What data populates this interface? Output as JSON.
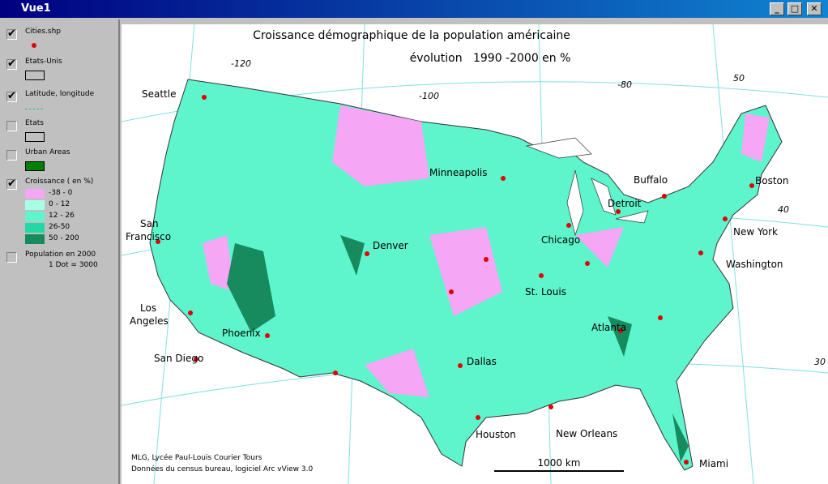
{
  "window": {
    "title": "Vue1"
  },
  "legend": {
    "layers": [
      {
        "name": "Cities.shp",
        "checked": true
      },
      {
        "name": "Etats-Unis",
        "checked": true
      },
      {
        "name": "Latitude, longitude",
        "checked": true
      },
      {
        "name": "Etats",
        "checked": false
      },
      {
        "name": "Urban Areas",
        "checked": false
      },
      {
        "name": "Croissance ( en %)",
        "checked": true
      },
      {
        "name": "Population en 2000",
        "checked": false
      }
    ],
    "classes": [
      {
        "label": "-38 - 0",
        "color": "#f5a6f5"
      },
      {
        "label": "0 - 12",
        "color": "#a8ffe4"
      },
      {
        "label": "12 - 26",
        "color": "#5ef5cc"
      },
      {
        "label": "26-50",
        "color": "#22d8a4"
      },
      {
        "label": "50 - 200",
        "color": "#178a5e"
      }
    ],
    "dot_note": "1 Dot = 3000"
  },
  "map": {
    "title": "Croissance démographique de la population américaine",
    "subtitle": "évolution   1990 -2000 en %",
    "graticule": [
      "-120",
      "-100",
      "-80",
      "50",
      "40",
      "30"
    ],
    "cities": [
      "Seattle",
      "San",
      "Francisco",
      "Los",
      "Angeles",
      "San Diego",
      "Phoenix",
      "Denver",
      "Minneapolis",
      "Chicago",
      "Detroit",
      "Buffalo",
      "Boston",
      "New York",
      "Washington",
      "St. Louis",
      "Atlanta",
      "Dallas",
      "Houston",
      "New Orleans",
      "Miami"
    ],
    "credits": [
      "MLG, Lycée Paul-Louis Courier Tours",
      "Données du census bureau, logiciel Arc vView 3.0"
    ],
    "scale": "1000 km"
  }
}
